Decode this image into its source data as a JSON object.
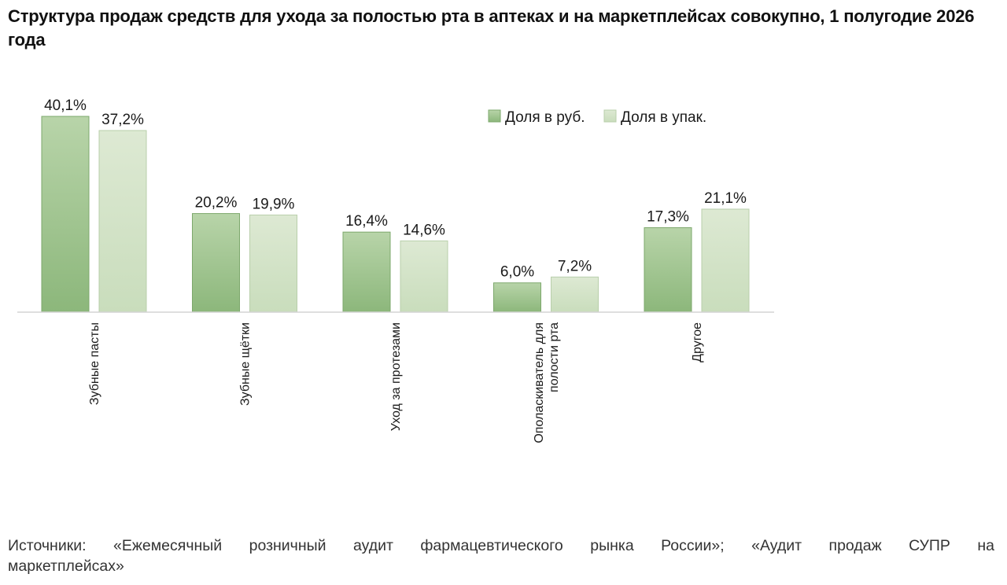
{
  "chart_data": {
    "type": "bar",
    "title": "Структура продаж средств для ухода за полостью рта в аптеках и на маркетплейсах совокупно, 1 полугодие 2026 года",
    "categories": [
      [
        "Зубные пасты"
      ],
      [
        "Зубные щётки"
      ],
      [
        "Уход за протезами"
      ],
      [
        "Ополаскиватель для",
        "полости рта"
      ],
      [
        "Другое"
      ]
    ],
    "series": [
      {
        "name": "Доля в руб.",
        "color": "#9bc08a",
        "values": [
          40.1,
          20.2,
          16.4,
          6.0,
          17.3
        ],
        "labels": [
          "40,1%",
          "20,2%",
          "16,4%",
          "6,0%",
          "17,3%"
        ]
      },
      {
        "name": "Доля в упак.",
        "color": "#d2e3c6",
        "values": [
          37.2,
          19.9,
          14.6,
          7.2,
          21.1
        ],
        "labels": [
          "37,2%",
          "19,9%",
          "14,6%",
          "7,2%",
          "21,1%"
        ]
      }
    ],
    "xlabel": "",
    "ylabel": "",
    "ylim": [
      0,
      40.1
    ],
    "grid": false,
    "legend_position": "top-right"
  },
  "source": {
    "line1": "Источники: «Ежемесячный розничный аудит фармацевтического рынка России»; «Аудит продаж СУПР на",
    "line2": "маркетплейсах»"
  }
}
